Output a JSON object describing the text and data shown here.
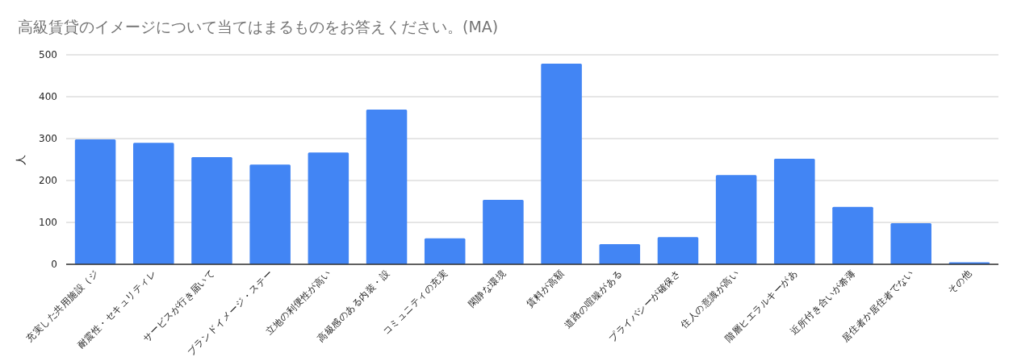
{
  "chart_data": {
    "type": "bar",
    "title": "高級賃貸のイメージについて当てはまるものをお答えください。(MA)",
    "ylabel": "人",
    "categories": [
      "充実した共用施設（ジ",
      "耐震性・セキュリティレ",
      "サービスが行き届いて",
      "ブランドイメージ・ステー",
      "立地の利便性が高い",
      "高級感のある内装・設",
      "コミュニティの充実",
      "閑静な環境",
      "賃料が高額",
      "道路の喧噪がある",
      "プライバシーが確保さ",
      "住人の意識が高い",
      "階層ヒエラルキーがあ",
      "近所付き合いが希薄",
      "居住者か居住者でない",
      "その他"
    ],
    "values": [
      298,
      290,
      256,
      238,
      267,
      369,
      62,
      154,
      479,
      48,
      65,
      213,
      252,
      137,
      98,
      5
    ],
    "color": "#4285f4",
    "ylim": [
      0,
      500
    ],
    "yticks": [
      0,
      100,
      200,
      300,
      400,
      500
    ],
    "grid": "y"
  }
}
